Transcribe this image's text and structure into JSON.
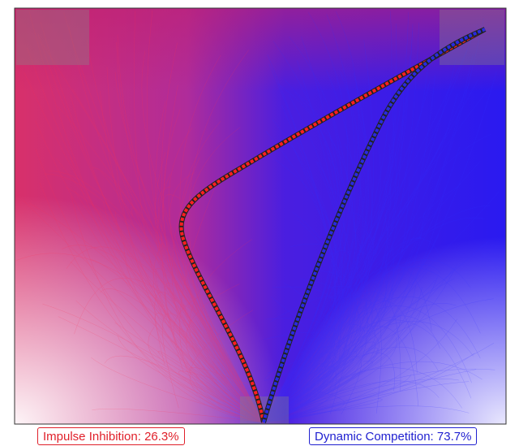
{
  "labels": [
    {
      "text": "Impulse Inhibition: 26.3%",
      "color": "#e0202a"
    },
    {
      "text": "Dynamic Competition: 73.7%",
      "color": "#2020d0"
    }
  ]
}
